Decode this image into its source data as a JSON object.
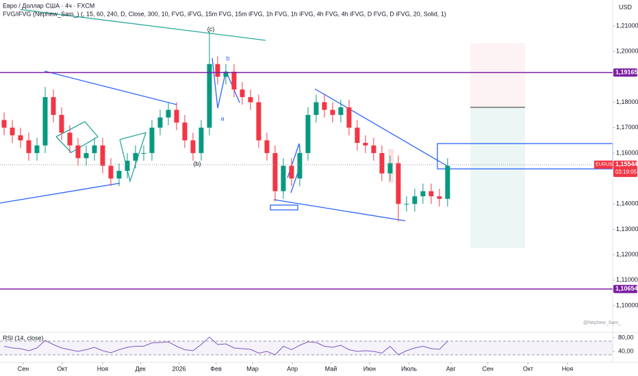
{
  "chart_data": [
    {
      "type": "candlestick",
      "title": "Евро / Доллар США · 4ч · FXCM",
      "subtitle": "FVG/iFVG (Nephew_Sam_) (, 15, 60, 240, D, Close, 300, 10, FVG, iFVG, 15m FVG, 15m iFVG, 1h FVG, 1h iFVG, 4h FVG, 4h iFVG, D FVG, D iFVG, 20, Solid, 1)",
      "y_axis_label": "USD",
      "watermark": "@Nephew_Sam_",
      "up_color": "#089981",
      "down_color": "#f23645",
      "xlim": [
        -0.5,
        74.1
      ],
      "xticks": [
        {
          "value": 2.33,
          "label": "Сен"
        },
        {
          "value": 7.08,
          "label": "Окт"
        },
        {
          "value": 12.0,
          "label": "Ноя"
        },
        {
          "value": 16.6,
          "label": "Дек"
        },
        {
          "value": 21.3,
          "label": "2026"
        },
        {
          "value": 25.8,
          "label": "Фев"
        },
        {
          "value": 30.25,
          "label": "Мар"
        },
        {
          "value": 35.1,
          "label": "Апр"
        },
        {
          "value": 39.8,
          "label": "Май"
        },
        {
          "value": 44.5,
          "label": "Июн"
        },
        {
          "value": 49.3,
          "label": "Июль"
        },
        {
          "value": 54.4,
          "label": "Авг"
        },
        {
          "value": 58.9,
          "label": "Сен"
        },
        {
          "value": 63.8,
          "label": "Окт"
        },
        {
          "value": 68.6,
          "label": "Ноя"
        }
      ],
      "ylim": [
        1.0898,
        1.2202
      ],
      "yticks": [
        {
          "value": 1.21,
          "label": "1,21000"
        },
        {
          "value": 1.2,
          "label": "1,20000"
        },
        {
          "value": 1.18,
          "label": "1,18000"
        },
        {
          "value": 1.17,
          "label": "1,17000"
        },
        {
          "value": 1.16,
          "label": "1,16000"
        },
        {
          "value": 1.14,
          "label": "1,14000"
        },
        {
          "value": 1.13,
          "label": "1,13000"
        },
        {
          "value": 1.12,
          "label": "1,12000"
        },
        {
          "value": 1.11,
          "label": "1,11000"
        },
        {
          "value": 1.1,
          "label": "1,10000"
        }
      ],
      "open": [
        1.173,
        1.17,
        1.167,
        1.165,
        1.16,
        1.163,
        1.182,
        1.175,
        1.168,
        1.163,
        1.158,
        1.16,
        1.163,
        1.155,
        1.15,
        1.153,
        1.157,
        1.16,
        1.16,
        1.17,
        1.174,
        1.177,
        1.172,
        1.165,
        1.16,
        1.17,
        1.195,
        1.19,
        1.192,
        1.185,
        1.182,
        1.18,
        1.165,
        1.16,
        1.145,
        1.155,
        1.15,
        1.16,
        1.175,
        1.18,
        1.177,
        1.175,
        1.178,
        1.17,
        1.164,
        1.163,
        1.16,
        1.152,
        1.156,
        1.14,
        1.14,
        1.143,
        1.145,
        1.143,
        1.142
      ],
      "high": [
        1.176,
        1.173,
        1.17,
        1.168,
        1.166,
        1.186,
        1.185,
        1.178,
        1.171,
        1.166,
        1.163,
        1.166,
        1.166,
        1.158,
        1.156,
        1.16,
        1.163,
        1.163,
        1.173,
        1.177,
        1.18,
        1.18,
        1.175,
        1.168,
        1.173,
        1.208,
        1.198,
        1.195,
        1.195,
        1.188,
        1.185,
        1.183,
        1.168,
        1.163,
        1.158,
        1.158,
        1.163,
        1.178,
        1.183,
        1.183,
        1.18,
        1.181,
        1.181,
        1.173,
        1.167,
        1.166,
        1.163,
        1.159,
        1.159,
        1.143,
        1.146,
        1.148,
        1.148,
        1.146,
        1.158
      ],
      "low": [
        1.167,
        1.164,
        1.162,
        1.157,
        1.157,
        1.16,
        1.172,
        1.165,
        1.16,
        1.155,
        1.155,
        1.157,
        1.152,
        1.147,
        1.147,
        1.15,
        1.154,
        1.157,
        1.157,
        1.167,
        1.171,
        1.169,
        1.162,
        1.157,
        1.157,
        1.167,
        1.187,
        1.187,
        1.182,
        1.179,
        1.177,
        1.162,
        1.157,
        1.141,
        1.142,
        1.147,
        1.147,
        1.157,
        1.172,
        1.174,
        1.172,
        1.172,
        1.167,
        1.161,
        1.16,
        1.157,
        1.149,
        1.149,
        1.133,
        1.137,
        1.137,
        1.14,
        1.14,
        1.139,
        1.139
      ],
      "close": [
        1.17,
        1.167,
        1.165,
        1.16,
        1.163,
        1.182,
        1.175,
        1.168,
        1.163,
        1.158,
        1.16,
        1.163,
        1.155,
        1.15,
        1.153,
        1.157,
        1.16,
        1.16,
        1.17,
        1.174,
        1.177,
        1.172,
        1.165,
        1.16,
        1.17,
        1.195,
        1.19,
        1.192,
        1.185,
        1.182,
        1.18,
        1.165,
        1.16,
        1.145,
        1.155,
        1.15,
        1.16,
        1.175,
        1.18,
        1.177,
        1.175,
        1.178,
        1.17,
        1.164,
        1.163,
        1.16,
        1.152,
        1.156,
        1.14,
        1.14,
        1.143,
        1.145,
        1.143,
        1.142,
        1.155
      ],
      "levels": [
        {
          "value": 1.19165,
          "label": "1,19165",
          "color": "#7b1fa2"
        },
        {
          "value": 1.10654,
          "label": "1,10654",
          "color": "#7b1fa2"
        }
      ],
      "last_price": {
        "value": 1.15544,
        "label": "1,15544",
        "symbol": "EURUSD",
        "countdown": "03:19:05",
        "color": "#f23645"
      },
      "annotations": [
        "(c)",
        "b",
        "a",
        "(b)"
      ]
    },
    {
      "type": "line",
      "title": "RSI (14, close)",
      "color": "#7e57c2",
      "ylim": [
        12,
        96
      ],
      "yticks": [
        {
          "value": 80,
          "label": "80,00"
        },
        {
          "value": 40,
          "label": "40,00"
        }
      ],
      "band": [
        30,
        70
      ],
      "values": [
        55,
        50,
        48,
        42,
        50,
        72,
        60,
        50,
        45,
        40,
        45,
        52,
        42,
        36,
        45,
        52,
        55,
        55,
        65,
        66,
        68,
        55,
        45,
        42,
        60,
        82,
        60,
        62,
        50,
        48,
        46,
        35,
        40,
        30,
        55,
        45,
        58,
        68,
        66,
        55,
        52,
        58,
        45,
        40,
        42,
        40,
        35,
        55,
        30,
        42,
        50,
        55,
        48,
        46,
        70
      ]
    }
  ]
}
